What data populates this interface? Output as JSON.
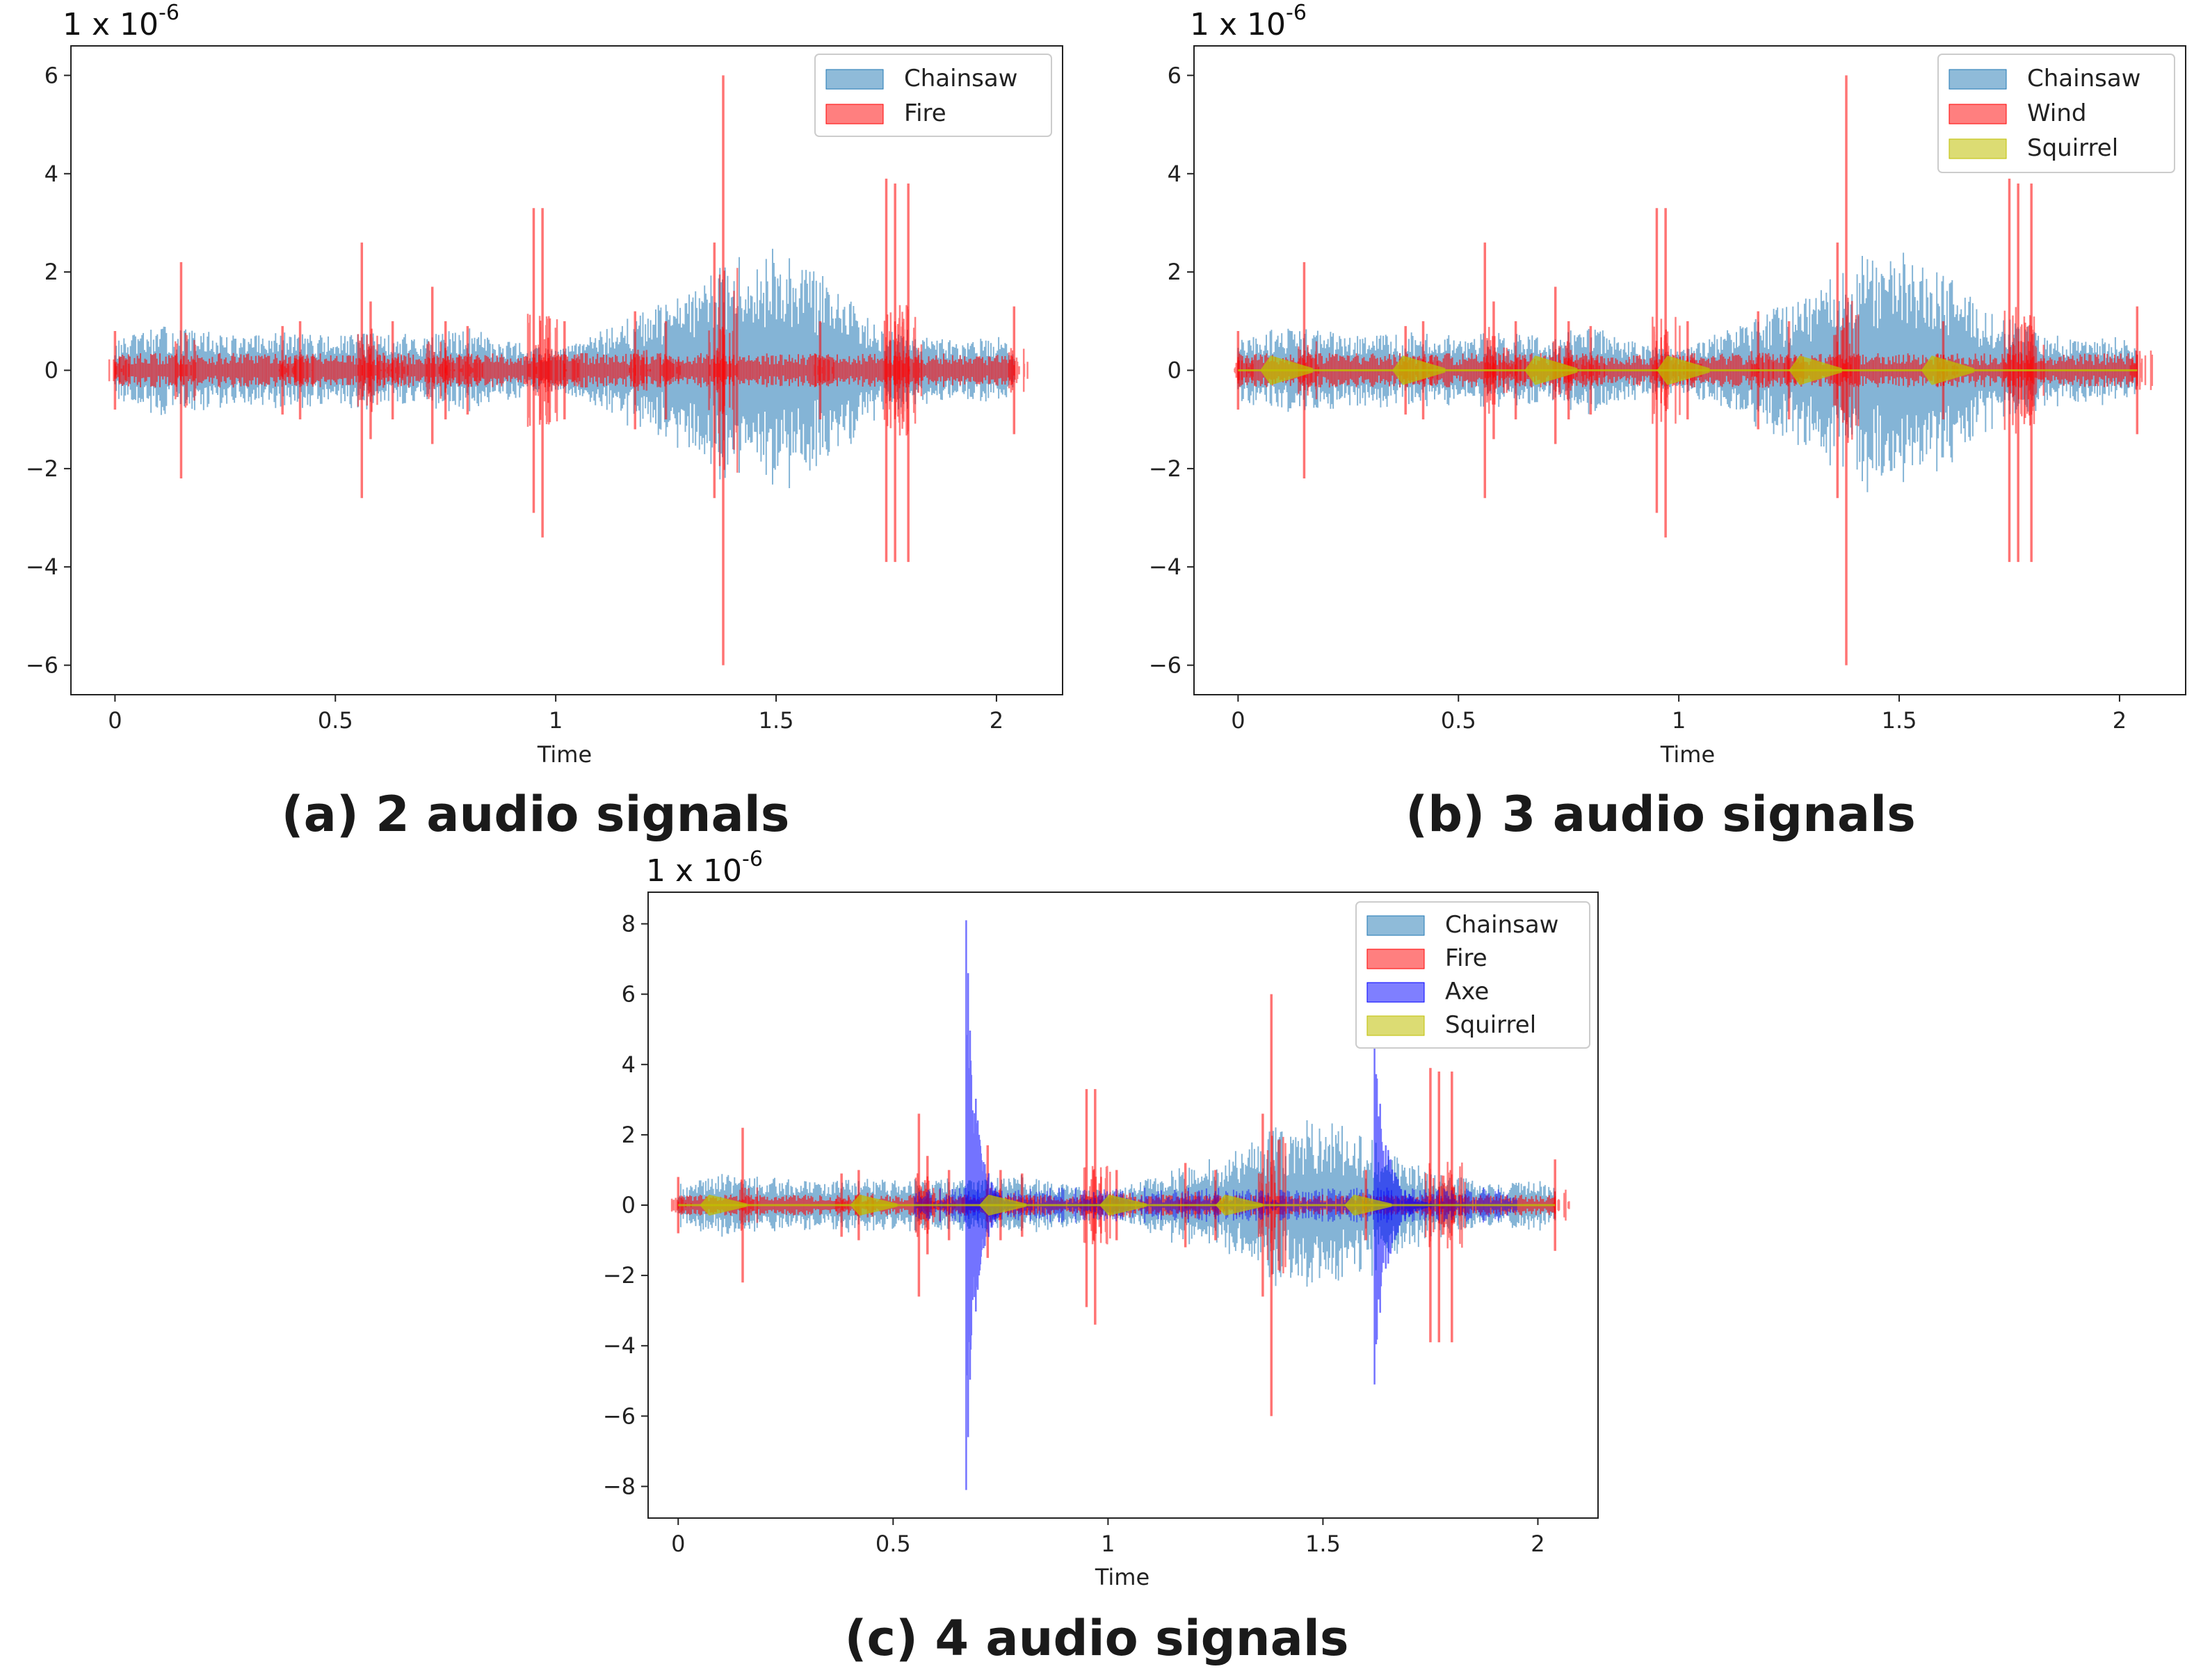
{
  "figure": {
    "colors": {
      "Chainsaw": "#1f77b4",
      "Fire": "#ff0000",
      "Wind": "#ff0000",
      "Axe": "#0000ff",
      "Squirrel": "#bfbf00"
    }
  },
  "chart_data": [
    {
      "id": "a",
      "type": "area",
      "caption": "(a) 2 audio signals",
      "scale_base": "1 x 10",
      "scale_exp": "-6",
      "xlabel": "Time",
      "ylabel": "",
      "xlim": [
        -0.1,
        2.15
      ],
      "ylim": [
        -6.6,
        6.6
      ],
      "xticks": [
        0,
        0.5,
        1,
        1.5,
        2
      ],
      "xtick_labels": [
        "0",
        "0.5",
        "1",
        "1.5",
        "2"
      ],
      "yticks": [
        6,
        4,
        2,
        0,
        -2,
        -4,
        -6
      ],
      "ytick_labels": [
        "6",
        "4",
        "2",
        "0",
        "−2",
        "−4",
        "−6"
      ],
      "legend": [
        "Chainsaw",
        "Fire"
      ],
      "legend_position": "top-right",
      "series": [
        {
          "name": "Chainsaw",
          "kind": "envelope",
          "x": [
            0,
            0.1,
            0.2,
            0.3,
            0.4,
            0.5,
            0.6,
            0.7,
            0.8,
            0.9,
            1.0,
            1.1,
            1.2,
            1.3,
            1.4,
            1.5,
            1.6,
            1.7,
            1.8,
            1.9,
            2.0,
            2.04
          ],
          "amp": [
            0.6,
            0.9,
            0.8,
            0.7,
            0.8,
            0.7,
            0.8,
            0.7,
            0.9,
            0.6,
            0.4,
            0.8,
            1.2,
            1.6,
            2.3,
            2.5,
            2.0,
            1.2,
            0.9,
            0.6,
            0.7,
            0.6
          ]
        },
        {
          "name": "Fire",
          "kind": "spikes",
          "base_amp": 0.35,
          "x": [
            0.0,
            0.15,
            0.38,
            0.42,
            0.56,
            0.58,
            0.63,
            0.72,
            0.75,
            0.8,
            0.95,
            0.97,
            1.02,
            1.18,
            1.25,
            1.36,
            1.38,
            1.6,
            1.75,
            1.77,
            1.8,
            2.04
          ],
          "top": [
            0.8,
            2.2,
            0.9,
            1.0,
            2.6,
            1.4,
            1.0,
            1.7,
            1.0,
            0.9,
            3.3,
            3.3,
            1.0,
            1.2,
            1.0,
            2.6,
            6.0,
            1.0,
            3.9,
            3.8,
            3.8,
            1.3
          ],
          "bottom": [
            -0.8,
            -2.2,
            -0.9,
            -1.0,
            -2.6,
            -1.4,
            -1.0,
            -1.5,
            -1.0,
            -0.9,
            -2.9,
            -3.4,
            -1.0,
            -1.2,
            -1.0,
            -2.6,
            -6.0,
            -1.0,
            -3.9,
            -3.9,
            -3.9,
            -1.3
          ]
        }
      ]
    },
    {
      "id": "b",
      "type": "area",
      "caption": "(b)  3 audio signals",
      "scale_base": "1 x 10",
      "scale_exp": "-6",
      "xlabel": "Time",
      "ylabel": "",
      "xlim": [
        -0.1,
        2.15
      ],
      "ylim": [
        -6.6,
        6.6
      ],
      "xticks": [
        0,
        0.5,
        1,
        1.5,
        2
      ],
      "xtick_labels": [
        "0",
        "0.5",
        "1",
        "1.5",
        "2"
      ],
      "yticks": [
        6,
        4,
        2,
        0,
        -2,
        -4,
        -6
      ],
      "ytick_labels": [
        "6",
        "4",
        "2",
        "0",
        "−2",
        "−4",
        "−6"
      ],
      "legend": [
        "Chainsaw",
        "Wind",
        "Squirrel"
      ],
      "legend_position": "top-right",
      "series": [
        {
          "name": "Chainsaw",
          "kind": "envelope",
          "x": [
            0,
            0.1,
            0.2,
            0.3,
            0.4,
            0.5,
            0.6,
            0.7,
            0.8,
            0.9,
            1.0,
            1.1,
            1.2,
            1.3,
            1.4,
            1.5,
            1.6,
            1.7,
            1.8,
            1.9,
            2.0,
            2.04
          ],
          "amp": [
            0.6,
            0.9,
            0.8,
            0.7,
            0.8,
            0.7,
            0.8,
            0.7,
            0.9,
            0.6,
            0.4,
            0.8,
            1.2,
            1.6,
            2.3,
            2.5,
            2.0,
            1.2,
            0.9,
            0.6,
            0.7,
            0.6
          ]
        },
        {
          "name": "Wind",
          "kind": "spikes",
          "base_amp": 0.35,
          "x": [
            0.0,
            0.15,
            0.38,
            0.42,
            0.56,
            0.58,
            0.63,
            0.72,
            0.75,
            0.8,
            0.95,
            0.97,
            1.02,
            1.18,
            1.25,
            1.36,
            1.38,
            1.6,
            1.75,
            1.77,
            1.8,
            2.04
          ],
          "top": [
            0.8,
            2.2,
            0.9,
            1.0,
            2.6,
            1.4,
            1.0,
            1.7,
            1.0,
            0.9,
            3.3,
            3.3,
            1.0,
            1.2,
            1.0,
            2.6,
            6.0,
            1.0,
            3.9,
            3.8,
            3.8,
            1.3
          ],
          "bottom": [
            -0.8,
            -2.2,
            -0.9,
            -1.0,
            -2.6,
            -1.4,
            -1.0,
            -1.5,
            -1.0,
            -0.9,
            -2.9,
            -3.4,
            -1.0,
            -1.2,
            -1.0,
            -2.6,
            -6.0,
            -1.0,
            -3.9,
            -3.9,
            -3.9,
            -1.3
          ]
        },
        {
          "name": "Squirrel",
          "kind": "chirps",
          "x": [
            0.05,
            0.35,
            0.65,
            0.95,
            1.25,
            1.55
          ],
          "amp": 0.3,
          "width": 0.12
        }
      ]
    },
    {
      "id": "c",
      "type": "area",
      "caption": "(c) 4 audio signals",
      "scale_base": "1 x 10",
      "scale_exp": "-6",
      "xlabel": "Time",
      "ylabel": "",
      "xlim": [
        -0.07,
        2.14
      ],
      "ylim": [
        -8.9,
        8.9
      ],
      "xticks": [
        0,
        0.5,
        1,
        1.5,
        2
      ],
      "xtick_labels": [
        "0",
        "0.5",
        "1",
        "1.5",
        "2"
      ],
      "yticks": [
        8,
        6,
        4,
        2,
        0,
        -2,
        -4,
        -6,
        -8
      ],
      "ytick_labels": [
        "8",
        "6",
        "4",
        "2",
        "0",
        "−2",
        "−4",
        "−6",
        "−8"
      ],
      "legend": [
        "Chainsaw",
        "Fire",
        "Axe",
        "Squirrel"
      ],
      "legend_position": "top-right",
      "series": [
        {
          "name": "Chainsaw",
          "kind": "envelope",
          "x": [
            0,
            0.1,
            0.2,
            0.3,
            0.4,
            0.5,
            0.6,
            0.7,
            0.8,
            0.9,
            1.0,
            1.1,
            1.2,
            1.3,
            1.4,
            1.5,
            1.6,
            1.7,
            1.8,
            1.9,
            2.0,
            2.04
          ],
          "amp": [
            0.6,
            0.9,
            0.8,
            0.7,
            0.8,
            0.7,
            0.8,
            0.7,
            0.9,
            0.6,
            0.4,
            0.8,
            1.2,
            1.6,
            2.3,
            2.5,
            2.0,
            1.2,
            0.9,
            0.6,
            0.7,
            0.6
          ]
        },
        {
          "name": "Fire",
          "kind": "spikes",
          "base_amp": 0.3,
          "x": [
            0.0,
            0.15,
            0.38,
            0.42,
            0.56,
            0.58,
            0.63,
            0.72,
            0.75,
            0.8,
            0.95,
            0.97,
            1.02,
            1.18,
            1.25,
            1.36,
            1.38,
            1.6,
            1.75,
            1.77,
            1.8,
            2.04
          ],
          "top": [
            0.8,
            2.2,
            0.9,
            1.0,
            2.6,
            1.4,
            1.0,
            1.7,
            1.0,
            0.9,
            3.3,
            3.3,
            1.0,
            1.2,
            1.0,
            2.6,
            6.0,
            1.0,
            3.9,
            3.8,
            3.8,
            1.3
          ],
          "bottom": [
            -0.8,
            -2.2,
            -0.9,
            -1.0,
            -2.6,
            -1.4,
            -1.0,
            -1.5,
            -1.0,
            -0.9,
            -2.9,
            -3.4,
            -1.0,
            -1.2,
            -1.0,
            -2.6,
            -6.0,
            -1.0,
            -3.9,
            -3.9,
            -3.9,
            -1.3
          ]
        },
        {
          "name": "Axe",
          "kind": "bursts",
          "x": [
            0.67,
            1.62
          ],
          "top": [
            8.1,
            4.8
          ],
          "bottom": [
            -8.1,
            -5.1
          ],
          "decay": [
            0.12,
            0.15
          ]
        },
        {
          "name": "Squirrel",
          "kind": "chirps",
          "x": [
            0.05,
            0.4,
            0.7,
            0.98,
            1.25,
            1.55
          ],
          "amp": 0.3,
          "width": 0.11
        }
      ]
    }
  ]
}
